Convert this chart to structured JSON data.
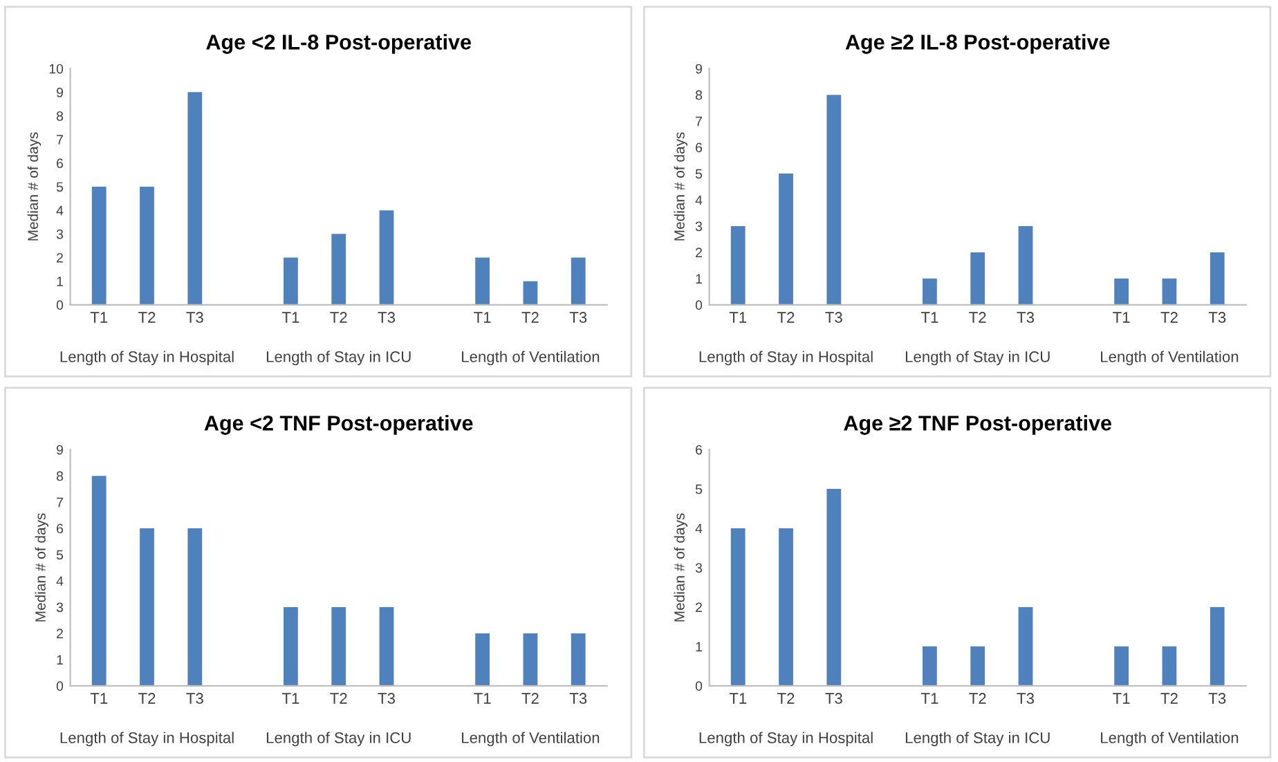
{
  "chart_data": [
    {
      "type": "bar",
      "title": "Age <2 IL-8 Post-operative",
      "ylabel": "Median # of days",
      "categories": [
        "T1",
        "T2",
        "T3",
        null,
        "T1",
        "T2",
        "T3",
        null,
        "T1",
        "T2",
        "T3"
      ],
      "values": [
        5,
        5,
        9,
        null,
        2,
        3,
        4,
        null,
        2,
        1,
        2
      ],
      "color": "#4f81bd",
      "ylim": [
        0,
        10
      ],
      "yticks": [
        0,
        1,
        2,
        3,
        4,
        5,
        6,
        7,
        8,
        9,
        10
      ],
      "grid": false,
      "annotations": [
        "Length of Stay in Hospital",
        "Length of Stay in ICU",
        "Length of Ventilation"
      ]
    },
    {
      "type": "bar",
      "title": "Age ≥2 IL-8 Post-operative",
      "ylabel": "Median # of days",
      "categories": [
        "T1",
        "T2",
        "T3",
        null,
        "T1",
        "T2",
        "T3",
        null,
        "T1",
        "T2",
        "T3"
      ],
      "values": [
        3,
        5,
        8,
        null,
        1,
        2,
        3,
        null,
        1,
        1,
        2
      ],
      "color": "#4f81bd",
      "ylim": [
        0,
        9
      ],
      "yticks": [
        0,
        1,
        2,
        3,
        4,
        5,
        6,
        7,
        8,
        9
      ],
      "grid": false,
      "annotations": [
        "Length of Stay in Hospital",
        "Length of Stay in ICU",
        "Length of Ventilation"
      ]
    },
    {
      "type": "bar",
      "title": "Age <2 TNF Post-operative",
      "ylabel": "Median # of days",
      "categories": [
        "T1",
        "T2",
        "T3",
        null,
        "T1",
        "T2",
        "T3",
        null,
        "T1",
        "T2",
        "T3"
      ],
      "values": [
        8,
        6,
        6,
        null,
        3,
        3,
        3,
        null,
        2,
        2,
        2
      ],
      "color": "#4f81bd",
      "ylim": [
        0,
        9
      ],
      "yticks": [
        0,
        1,
        2,
        3,
        4,
        5,
        6,
        7,
        8,
        9
      ],
      "grid": false,
      "annotations": [
        "Length of Stay in Hospital",
        "Length of Stay in ICU",
        "Length of Ventilation"
      ]
    },
    {
      "type": "bar",
      "title": "Age ≥2 TNF Post-operative",
      "ylabel": "Median # of days",
      "categories": [
        "T1",
        "T2",
        "T3",
        null,
        "T1",
        "T2",
        "T3",
        null,
        "T1",
        "T2",
        "T3"
      ],
      "values": [
        4,
        4,
        5,
        null,
        1,
        1,
        2,
        null,
        1,
        1,
        2
      ],
      "color": "#4f81bd",
      "ylim": [
        0,
        6
      ],
      "yticks": [
        0,
        1,
        2,
        3,
        4,
        5,
        6
      ],
      "grid": false,
      "annotations": [
        "Length of Stay in Hospital",
        "Length of Stay in ICU",
        "Length of Ventilation"
      ]
    }
  ]
}
